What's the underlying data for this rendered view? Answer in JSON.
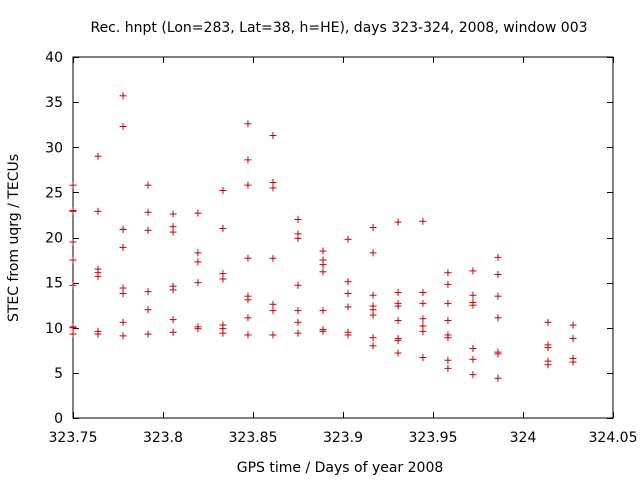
{
  "chart_data": {
    "type": "scatter",
    "title": "Rec. hnpt (Lon=283, Lat=38, h=HE), days 323-324, 2008, window 003",
    "xlabel": "GPS time / Days of year 2008",
    "ylabel": "STEC from uqrg / TECUs",
    "xlim": [
      323.75,
      324.05
    ],
    "ylim": [
      0,
      40
    ],
    "xticks": [
      323.75,
      323.8,
      323.85,
      323.9,
      323.95,
      324,
      324.05
    ],
    "xtick_labels": [
      "323.75",
      "323.8",
      "323.85",
      "323.9",
      "323.95",
      "324",
      "324.05"
    ],
    "yticks": [
      0,
      5,
      10,
      15,
      20,
      25,
      30,
      35,
      40
    ],
    "ytick_labels": [
      "0",
      "5",
      "10",
      "15",
      "20",
      "25",
      "30",
      "35",
      "40"
    ],
    "grid": false,
    "marker": "plus",
    "color": "#cc0000",
    "x": [
      323.75,
      323.75,
      323.75,
      323.75,
      323.75,
      323.75,
      323.75,
      323.75,
      323.75,
      323.7639,
      323.7639,
      323.7639,
      323.7639,
      323.7639,
      323.7639,
      323.7639,
      323.7778,
      323.7778,
      323.7778,
      323.7778,
      323.7778,
      323.7778,
      323.7778,
      323.7778,
      323.7778,
      323.7917,
      323.7917,
      323.7917,
      323.7917,
      323.7917,
      323.7917,
      323.8056,
      323.8056,
      323.8056,
      323.8056,
      323.8056,
      323.8056,
      323.8056,
      323.8194,
      323.8194,
      323.8194,
      323.8194,
      323.8194,
      323.8194,
      323.8333,
      323.8333,
      323.8333,
      323.8333,
      323.8333,
      323.8333,
      323.8333,
      323.8472,
      323.8472,
      323.8472,
      323.8472,
      323.8472,
      323.8472,
      323.8472,
      323.8472,
      323.8611,
      323.8611,
      323.8611,
      323.8611,
      323.8611,
      323.8611,
      323.8611,
      323.875,
      323.875,
      323.875,
      323.875,
      323.875,
      323.875,
      323.875,
      323.8889,
      323.8889,
      323.8889,
      323.8889,
      323.8889,
      323.8889,
      323.8889,
      323.9028,
      323.9028,
      323.9028,
      323.9028,
      323.9028,
      323.9028,
      323.9167,
      323.9167,
      323.9167,
      323.9167,
      323.9167,
      323.9167,
      323.9167,
      323.9167,
      323.9306,
      323.9306,
      323.9306,
      323.9306,
      323.9306,
      323.9306,
      323.9306,
      323.9306,
      323.9444,
      323.9444,
      323.9444,
      323.9444,
      323.9444,
      323.9444,
      323.9444,
      323.9583,
      323.9583,
      323.9583,
      323.9583,
      323.9583,
      323.9583,
      323.9583,
      323.9583,
      323.9722,
      323.9722,
      323.9722,
      323.9722,
      323.9722,
      323.9722,
      323.9722,
      323.9861,
      323.9861,
      323.9861,
      323.9861,
      323.9861,
      323.9861,
      323.9861,
      324.0139,
      324.0139,
      324.0139,
      324.0139,
      324.0139,
      324.0278,
      324.0278,
      324.0278,
      324.0278
    ],
    "y": [
      25.8,
      22.9,
      19.5,
      17.5,
      14.7,
      10.0,
      9.3,
      23.0,
      10.1,
      29.0,
      22.9,
      16.5,
      16.1,
      15.7,
      9.6,
      9.3,
      35.7,
      32.3,
      20.9,
      18.9,
      14.4,
      13.8,
      10.6,
      9.1,
      20.9,
      25.8,
      22.8,
      20.8,
      14.0,
      12.0,
      9.3,
      22.6,
      21.2,
      20.6,
      14.6,
      14.2,
      10.9,
      9.5,
      22.7,
      18.3,
      17.3,
      15.0,
      10.1,
      9.9,
      25.2,
      21.0,
      16.0,
      15.4,
      10.3,
      9.9,
      9.4,
      32.6,
      28.6,
      25.8,
      17.7,
      13.5,
      13.1,
      11.1,
      9.2,
      31.3,
      26.1,
      25.5,
      17.7,
      12.6,
      11.9,
      9.2,
      22.0,
      20.4,
      19.9,
      14.7,
      11.9,
      10.6,
      9.4,
      18.5,
      17.5,
      17.0,
      16.2,
      11.9,
      9.8,
      9.6,
      19.8,
      15.1,
      13.8,
      12.3,
      9.5,
      9.2,
      21.1,
      18.3,
      13.6,
      12.4,
      12.0,
      11.4,
      8.9,
      8.0,
      21.7,
      13.9,
      12.7,
      12.4,
      10.8,
      8.8,
      8.6,
      7.2,
      21.8,
      13.9,
      12.7,
      11.0,
      10.2,
      9.6,
      6.7,
      16.1,
      14.8,
      12.7,
      10.8,
      9.2,
      8.9,
      6.4,
      5.5,
      16.3,
      13.6,
      12.8,
      12.5,
      7.7,
      6.5,
      4.8,
      17.8,
      15.9,
      13.5,
      11.1,
      7.3,
      7.1,
      4.4,
      10.6,
      8.1,
      7.8,
      6.3,
      5.9,
      10.3,
      8.8,
      6.6,
      6.2
    ]
  }
}
